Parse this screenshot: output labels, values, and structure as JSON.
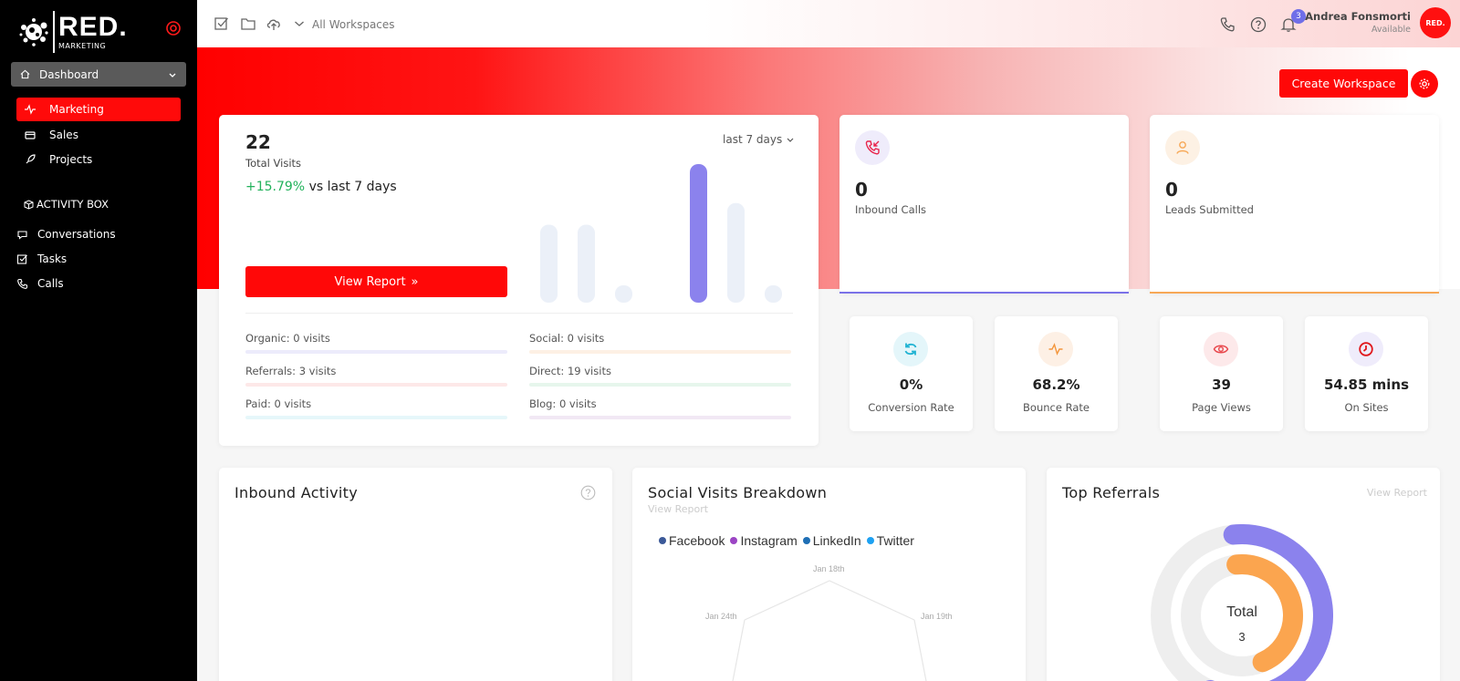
{
  "sidebar": {
    "logo_text": "RED.",
    "logo_sub": "MARKETING",
    "dashboard_label": "Dashboard",
    "nav": [
      {
        "label": "Marketing",
        "icon": "activity-icon"
      },
      {
        "label": "Sales",
        "icon": "wallet-icon"
      },
      {
        "label": "Projects",
        "icon": "rocket-icon"
      }
    ],
    "section_label": "ACTIVITY BOX",
    "activity": [
      {
        "label": "Conversations",
        "icon": "chat-icon"
      },
      {
        "label": "Tasks",
        "icon": "checkbox-icon"
      },
      {
        "label": "Calls",
        "icon": "phone-icon"
      }
    ]
  },
  "topbar": {
    "workspace_label": "All Workspaces",
    "notification_count": "3",
    "user_name": "Andrea Fonsmorti",
    "user_status": "Available",
    "avatar_text": "RED."
  },
  "hero": {
    "create_workspace": "Create Workspace"
  },
  "visits": {
    "total": "22",
    "label": "Total Visits",
    "growth_pct": "+15.79%",
    "growth_text": " vs last 7 days",
    "range": "last 7 days",
    "view_report": "View Report",
    "sources": [
      {
        "label": "Organic: 0 visits",
        "color": "#ecebfb"
      },
      {
        "label": "Social: 0 visits",
        "color": "#fdf0e4"
      },
      {
        "label": "Referrals: 3 visits",
        "color": "#fde8e8"
      },
      {
        "label": "Direct: 19 visits",
        "color": "#e6f6ec"
      },
      {
        "label": "Paid: 0 visits",
        "color": "#e6f7fa"
      },
      {
        "label": "Blog: 0 visits",
        "color": "#f1e8f4"
      }
    ]
  },
  "chart_data": {
    "type": "bar",
    "values": [
      9,
      9,
      2,
      0,
      16,
      11.5,
      2
    ],
    "highlight_index": 4,
    "colors": {
      "bar": "#ebf0f8",
      "highlight": "#8b82ed"
    }
  },
  "stats": [
    {
      "value": "0",
      "label": "Inbound Calls",
      "accent": "#7b72e8",
      "bg": "#efecfb"
    },
    {
      "value": "0",
      "label": "Leads Submitted",
      "accent": "#f7a857",
      "bg": "#fdf1e4"
    }
  ],
  "mini_stats": [
    {
      "value": "0%",
      "label": "Conversion Rate",
      "accent": "#21b3d3",
      "bg": "#e4f6fa"
    },
    {
      "value": "68.2%",
      "label": "Bounce Rate",
      "accent": "#f3963c",
      "bg": "#fdf0e5"
    },
    {
      "value": "39",
      "label": "Page Views",
      "accent": "#e8474c",
      "bg": "#fde9ea"
    },
    {
      "value": "54.85 mins",
      "label": "On Sites",
      "accent": "#e0181c",
      "bg": "#efecfb"
    }
  ],
  "inbound": {
    "title": "Inbound Activity"
  },
  "social": {
    "title": "Social Visits Breakdown",
    "view_report": "View Report",
    "legend": [
      {
        "name": "Facebook",
        "color": "#3b5998"
      },
      {
        "name": "Instagram",
        "color": "#9b45c4"
      },
      {
        "name": "LinkedIn",
        "color": "#1f6fb5"
      },
      {
        "name": "Twitter",
        "color": "#1da1f2"
      }
    ],
    "axis_labels": [
      "Jan 18th",
      "Jan 19th",
      "Jan 24th"
    ]
  },
  "referrals": {
    "title": "Top Referrals",
    "view_report": "View Report",
    "total_label": "Total",
    "total_value": "3",
    "rings": [
      {
        "fraction": 0.58,
        "color": "#8b82ed"
      },
      {
        "fraction": 0.45,
        "color": "#fba54f"
      }
    ]
  }
}
